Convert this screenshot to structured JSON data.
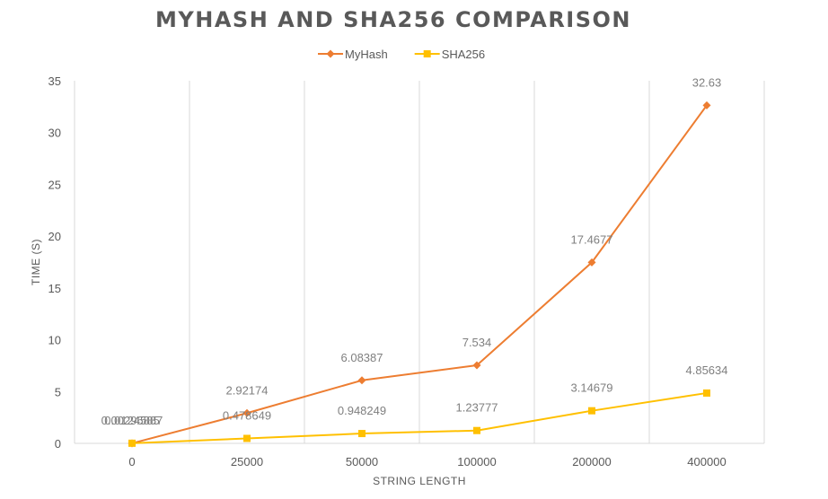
{
  "chart_data": {
    "type": "line",
    "title": "MYHASH AND SHA256 COMPARISON",
    "xlabel": "STRING LENGTH",
    "ylabel": "TIME (S)",
    "categories": [
      "0",
      "25000",
      "50000",
      "100000",
      "200000",
      "400000"
    ],
    "ylim": [
      0,
      35
    ],
    "yticks": [
      0,
      5,
      10,
      15,
      20,
      25,
      30,
      35
    ],
    "grid": "vertical",
    "legend_position": "top",
    "series": [
      {
        "name": "MyHash",
        "color": "#ED7D31",
        "marker": "diamond",
        "values": [
          0.00296887,
          2.92174,
          6.08387,
          7.534,
          17.4677,
          32.63
        ],
        "labels": [
          "0.00296887",
          "2.92174",
          "6.08387",
          "7.534",
          "17.4677",
          "32.63"
        ]
      },
      {
        "name": "SHA256",
        "color": "#FFC000",
        "marker": "square",
        "values": [
          0.0124585,
          0.478649,
          0.948249,
          1.23777,
          3.14679,
          4.85634
        ],
        "labels": [
          "0.0124585",
          "0.478649",
          "0.948249",
          "1.23777",
          "3.14679",
          "4.85634"
        ]
      }
    ]
  }
}
